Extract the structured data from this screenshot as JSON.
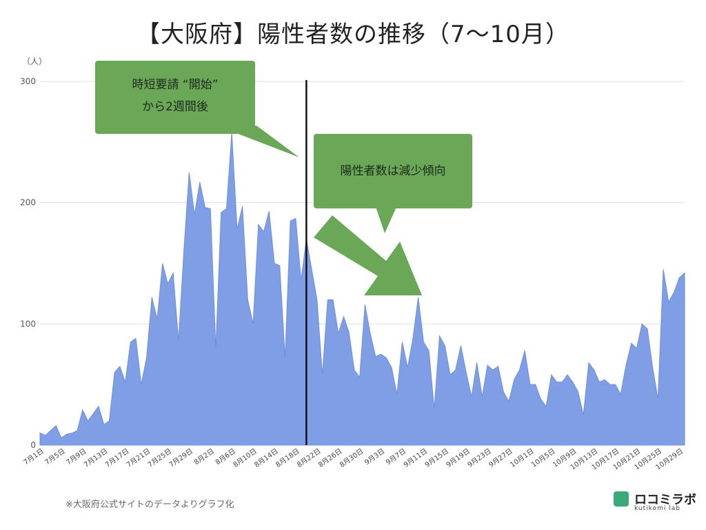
{
  "title": "【大阪府】陽性者数の推移（7〜10月）",
  "source_note": "※大阪府公式サイトのデータよりグラフ化",
  "logo": {
    "name": "ロコミラボ",
    "sub": "kutikomi lab",
    "color": "#3ca97a"
  },
  "chart_data": {
    "type": "area",
    "ylabel": "（人）",
    "ylim": [
      0,
      300
    ],
    "yticks": [
      0,
      100,
      200,
      300
    ],
    "grid": true,
    "fill_color": "#7f9ee6",
    "divider_date": "8月20日",
    "x_start": "7月1日",
    "x_tick_labels": [
      "7月1日",
      "7月5日",
      "7月9日",
      "7月13日",
      "7月17日",
      "7月21日",
      "7月25日",
      "7月29日",
      "8月2日",
      "8月6日",
      "8月10日",
      "8月14日",
      "8月18日",
      "8月22日",
      "8月26日",
      "8月30日",
      "9月3日",
      "9月7日",
      "9月11日",
      "9月15日",
      "9月19日",
      "9月23日",
      "9月27日",
      "10月1日",
      "10月5日",
      "10月9日",
      "10月13日",
      "10月17日",
      "10月21日",
      "10月25日",
      "10月29日"
    ],
    "series": [
      {
        "values": [
          10,
          8,
          12,
          16,
          6,
          9,
          10,
          12,
          29,
          20,
          26,
          32,
          17,
          20,
          60,
          65,
          52,
          85,
          88,
          50,
          72,
          122,
          104,
          150,
          133,
          142,
          86,
          160,
          225,
          190,
          217,
          196,
          195,
          80,
          192,
          195,
          258,
          178,
          197,
          120,
          100,
          182,
          176,
          193,
          150,
          148,
          72,
          185,
          187,
          136,
          170,
          145,
          120,
          58,
          120,
          120,
          92,
          106,
          93,
          62,
          56,
          116,
          92,
          73,
          75,
          72,
          64,
          42,
          85,
          64,
          88,
          122,
          85,
          78,
          30,
          90,
          82,
          58,
          62,
          82,
          60,
          40,
          68,
          40,
          66,
          62,
          65,
          44,
          36,
          54,
          62,
          78,
          50,
          50,
          38,
          32,
          58,
          52,
          52,
          58,
          52,
          44,
          25,
          68,
          62,
          52,
          54,
          50,
          50,
          42,
          66,
          84,
          80,
          100,
          96,
          64,
          38,
          145,
          118,
          126,
          138,
          142
        ]
      }
    ],
    "callouts": [
      {
        "text_lines": [
          "時短要請 “開始”",
          "から2週間後"
        ],
        "color": "#6aa757"
      },
      {
        "text_lines": [
          "陽性者数は減少傾向"
        ],
        "color": "#6aa757"
      }
    ]
  }
}
